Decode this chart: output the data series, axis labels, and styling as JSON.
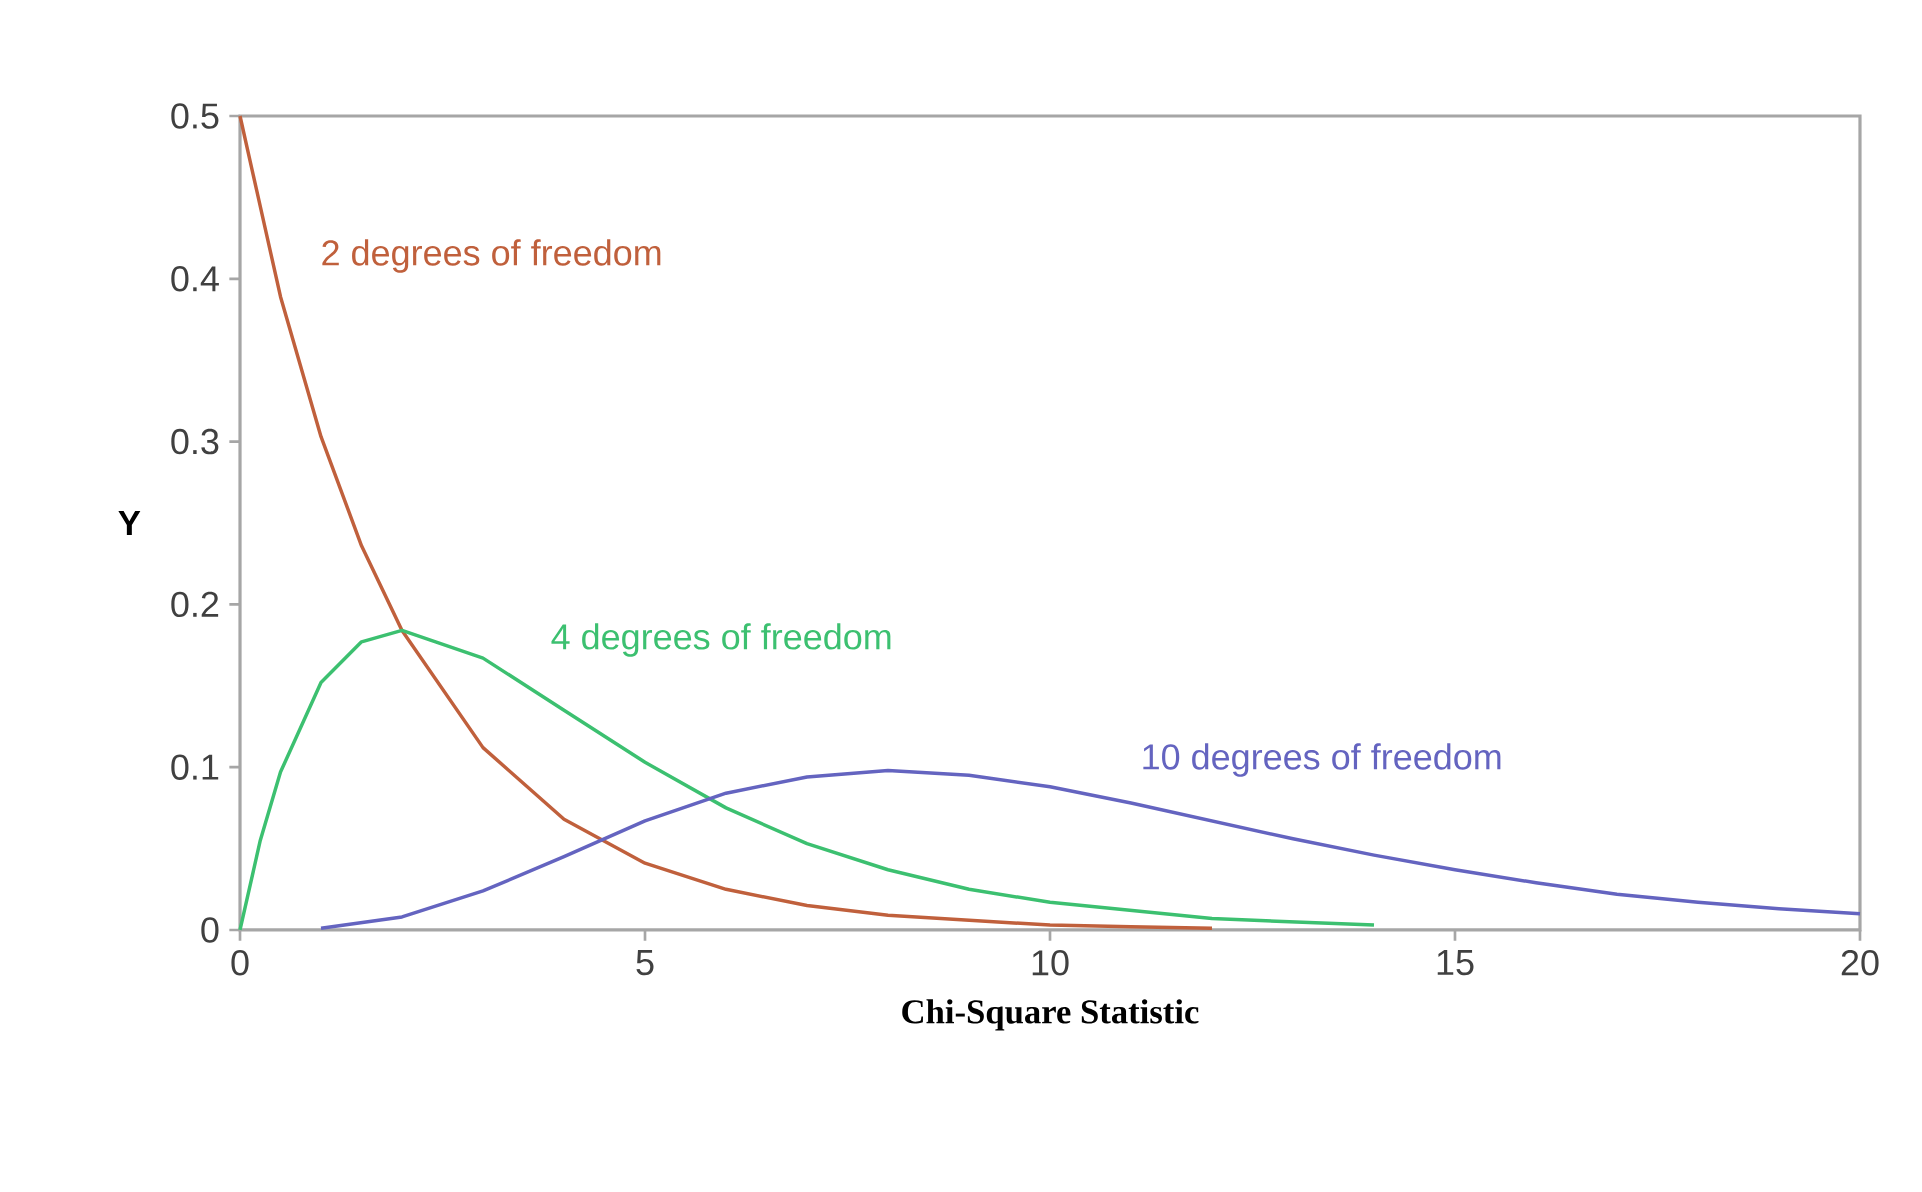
{
  "chart_data": {
    "type": "line",
    "xlabel": "Chi-Square Statistic",
    "ylabel": "Y",
    "xlim": [
      0,
      20
    ],
    "ylim": [
      0,
      0.5
    ],
    "xticks": [
      0,
      5,
      10,
      15,
      20
    ],
    "yticks": [
      0,
      0.1,
      0.2,
      0.3,
      0.4,
      0.5
    ],
    "grid": false,
    "marker": "none",
    "line_style": "solid",
    "series": [
      {
        "name": "2 degrees of freedom",
        "color": "#c0603c",
        "x": [
          0,
          0.5,
          1,
          1.5,
          2,
          3,
          4,
          5,
          6,
          7,
          8,
          9,
          10,
          11,
          12
        ],
        "values": [
          0.5,
          0.389,
          0.303,
          0.236,
          0.184,
          0.112,
          0.068,
          0.041,
          0.025,
          0.015,
          0.009,
          0.006,
          0.003,
          0.002,
          0.001
        ]
      },
      {
        "name": "4 degrees of freedom",
        "color": "#3cc070",
        "x": [
          0,
          0.25,
          0.5,
          1,
          1.5,
          2,
          3,
          4,
          5,
          6,
          7,
          8,
          9,
          10,
          12,
          14
        ],
        "values": [
          0,
          0.055,
          0.097,
          0.152,
          0.177,
          0.184,
          0.167,
          0.135,
          0.103,
          0.075,
          0.053,
          0.037,
          0.025,
          0.017,
          0.007,
          0.003
        ]
      },
      {
        "name": "10 degrees of freedom",
        "color": "#6464c0",
        "x": [
          1,
          2,
          3,
          4,
          5,
          6,
          7,
          8,
          9,
          10,
          11,
          12,
          13,
          14,
          15,
          16,
          17,
          18,
          19,
          20
        ],
        "values": [
          0.001,
          0.008,
          0.024,
          0.045,
          0.067,
          0.084,
          0.094,
          0.098,
          0.095,
          0.088,
          0.078,
          0.067,
          0.056,
          0.046,
          0.037,
          0.029,
          0.022,
          0.017,
          0.013,
          0.01
        ]
      }
    ]
  }
}
